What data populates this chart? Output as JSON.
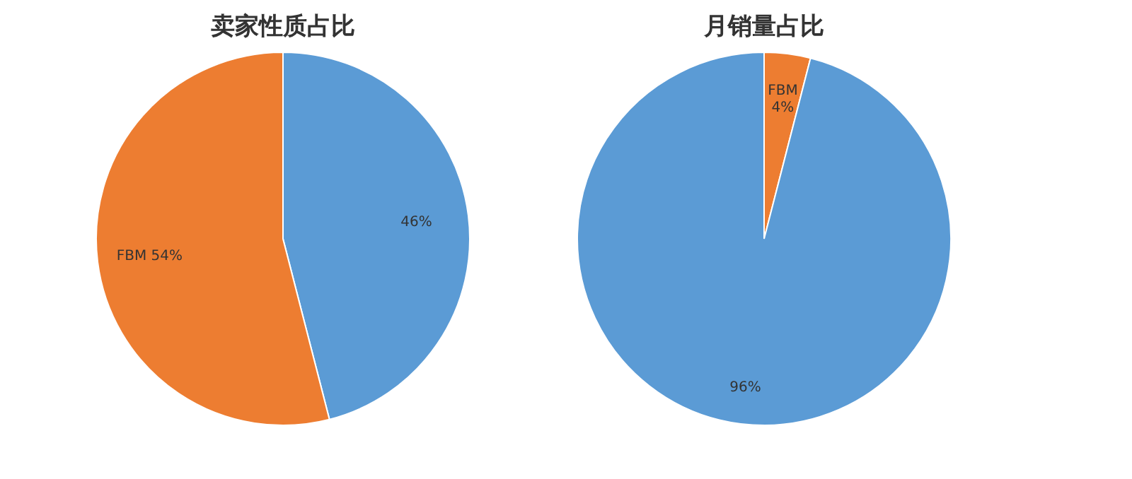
{
  "chart_data": [
    {
      "type": "pie",
      "title": "卖家性质占比",
      "categories": [
        null,
        "FBM"
      ],
      "values": [
        46,
        54
      ],
      "colors": [
        "#5b9bd5",
        "#ed7d31"
      ],
      "value_labels": [
        "46%",
        "54%"
      ]
    },
    {
      "type": "pie",
      "title": "月销量占比",
      "categories": [
        "FBM",
        null
      ],
      "values": [
        4,
        96
      ],
      "colors": [
        "#ed7d31",
        "#5b9bd5"
      ],
      "value_labels": [
        "4%",
        "96%"
      ]
    }
  ]
}
